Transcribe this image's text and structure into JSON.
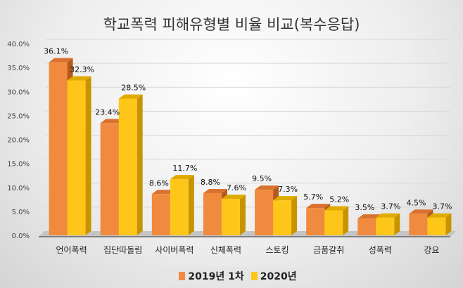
{
  "chart_data": {
    "type": "bar",
    "title": "학교폭력 피해유형별 비율 비교(복수응답)",
    "categories": [
      "언어폭력",
      "집단따돌림",
      "사이버폭력",
      "신체폭력",
      "스토킹",
      "금품갈취",
      "성폭력",
      "강요"
    ],
    "series": [
      {
        "name": "2019년 1차",
        "values": [
          36.1,
          23.4,
          8.6,
          8.8,
          9.5,
          5.7,
          3.5,
          4.5
        ],
        "labels": [
          "36.1%",
          "23.4%",
          "8.6%",
          "8.8%",
          "9.5%",
          "5.7%",
          "3.5%",
          "4.5%"
        ],
        "color": "#f08a3e"
      },
      {
        "name": "2020년",
        "values": [
          32.3,
          28.5,
          11.7,
          7.6,
          7.3,
          5.2,
          3.7,
          3.7
        ],
        "labels": [
          "32.3%",
          "28.5%",
          "11.7%",
          "7.6%",
          "7.3%",
          "5.2%",
          "3.7%",
          "3.7%"
        ],
        "color": "#ffc61a"
      }
    ],
    "yticks": [
      "0.0%",
      "5.0%",
      "10.0%",
      "15.0%",
      "20.0%",
      "25.0%",
      "30.0%",
      "35.0%",
      "40.0%"
    ],
    "ylim": [
      0,
      40
    ],
    "grid": true,
    "style": "3d-column",
    "legend": "bottom"
  }
}
